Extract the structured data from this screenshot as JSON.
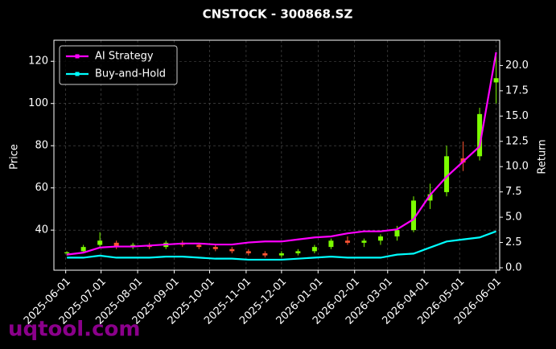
{
  "chart_data": {
    "type": "candlestick",
    "title": "CNSTOCK - 300868.SZ",
    "ylabel": "Price",
    "y2label": "Return",
    "watermark": "uqtool.com",
    "x": [
      "2025-06-02",
      "2025-06-16",
      "2025-06-30",
      "2025-07-14",
      "2025-07-28",
      "2025-08-11",
      "2025-08-25",
      "2025-09-08",
      "2025-09-22",
      "2025-10-06",
      "2025-10-20",
      "2025-11-03",
      "2025-11-17",
      "2025-12-01",
      "2025-12-15",
      "2025-12-29",
      "2026-01-12",
      "2026-01-26",
      "2026-02-09",
      "2026-02-23",
      "2026-03-09",
      "2026-03-23",
      "2026-04-06",
      "2026-04-20",
      "2026-05-04",
      "2026-05-18",
      "2026-06-01"
    ],
    "ohlc": {
      "open": [
        29,
        30,
        33,
        34,
        32,
        33,
        32,
        34,
        33,
        32,
        31,
        30,
        29,
        28,
        29,
        30,
        32,
        35,
        34,
        35,
        37,
        40,
        54,
        58,
        74,
        75,
        110
      ],
      "high": [
        30,
        33,
        39,
        35,
        34,
        34,
        35,
        35,
        34,
        33,
        32,
        31,
        30,
        30,
        31,
        33,
        36,
        37,
        36,
        38,
        42,
        56,
        62,
        80,
        82,
        98,
        124
      ],
      "low": [
        28,
        29,
        32,
        31,
        31,
        31,
        31,
        32,
        31,
        30,
        29,
        28,
        27,
        27,
        28,
        29,
        31,
        33,
        32,
        33,
        35,
        39,
        50,
        56,
        68,
        73,
        100
      ],
      "close": [
        29.5,
        32,
        35,
        32,
        33,
        32,
        34,
        33,
        32,
        31,
        30,
        29,
        28,
        29,
        30,
        32,
        35,
        34,
        35,
        37,
        40,
        54,
        57,
        75,
        72,
        95,
        112
      ],
      "up_color": "#7cfc00",
      "down_color": "#ff5533"
    },
    "series": [
      {
        "name": "AI Strategy",
        "color": "#ff00ff",
        "axis": "y2",
        "values": [
          1.3,
          1.5,
          2.0,
          2.1,
          2.1,
          2.2,
          2.3,
          2.4,
          2.4,
          2.3,
          2.3,
          2.5,
          2.6,
          2.6,
          2.8,
          3.0,
          3.1,
          3.4,
          3.6,
          3.6,
          3.8,
          4.8,
          7.2,
          9.0,
          10.5,
          12.0,
          21.3
        ]
      },
      {
        "name": "Buy-and-Hold",
        "color": "#00ffff",
        "axis": "y2",
        "values": [
          1.0,
          1.0,
          1.2,
          1.0,
          1.0,
          1.0,
          1.1,
          1.1,
          1.0,
          0.9,
          0.9,
          0.8,
          0.8,
          0.8,
          0.9,
          1.0,
          1.1,
          1.0,
          1.0,
          1.0,
          1.3,
          1.4,
          2.0,
          2.6,
          2.8,
          3.0,
          3.6
        ]
      }
    ],
    "xlim": [
      "2025-05-22",
      "2026-06-04"
    ],
    "xticks": [
      "2025-06-01",
      "2025-07-01",
      "2025-08-01",
      "2025-09-01",
      "2025-10-01",
      "2025-11-01",
      "2025-12-01",
      "2026-01-01",
      "2026-02-01",
      "2026-03-01",
      "2026-04-01",
      "2026-05-01",
      "2026-06-01"
    ],
    "ylim": [
      21,
      130
    ],
    "yticks": [
      40,
      60,
      80,
      100,
      120
    ],
    "y2lim": [
      -0.24,
      22.5
    ],
    "y2ticks": [
      {
        "value": 0,
        "label": "0.0"
      },
      2.5,
      {
        "value": 5,
        "label": "5.0"
      },
      7.5,
      {
        "value": 10,
        "label": "10.0"
      },
      12.5,
      {
        "value": 15,
        "label": "15.0"
      },
      17.5,
      {
        "value": 20,
        "label": "20.0"
      }
    ],
    "grid": true,
    "legend": "upper left"
  }
}
